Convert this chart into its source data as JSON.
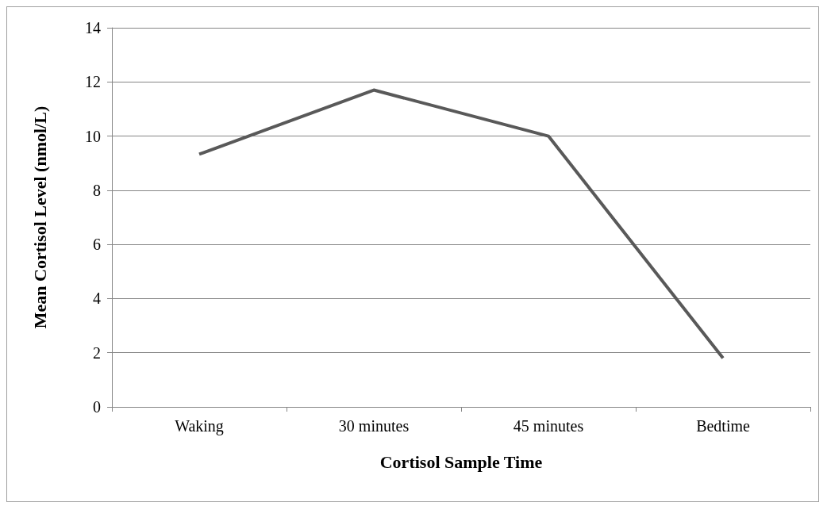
{
  "chart_data": {
    "type": "line",
    "xlabel": "Cortisol Sample Time",
    "ylabel": "Mean Cortisol Level (nmol/L)",
    "categories": [
      "Waking",
      "30 minutes",
      "45 minutes",
      "Bedtime"
    ],
    "series": [
      {
        "color": "#595959",
        "values": [
          9.33,
          11.7,
          10.0,
          1.8
        ]
      }
    ],
    "ylim": [
      0,
      14
    ],
    "yticks": [
      0,
      2,
      4,
      6,
      8,
      10,
      12,
      14
    ],
    "grid": "y",
    "marker": "none",
    "line_style": "solid"
  }
}
